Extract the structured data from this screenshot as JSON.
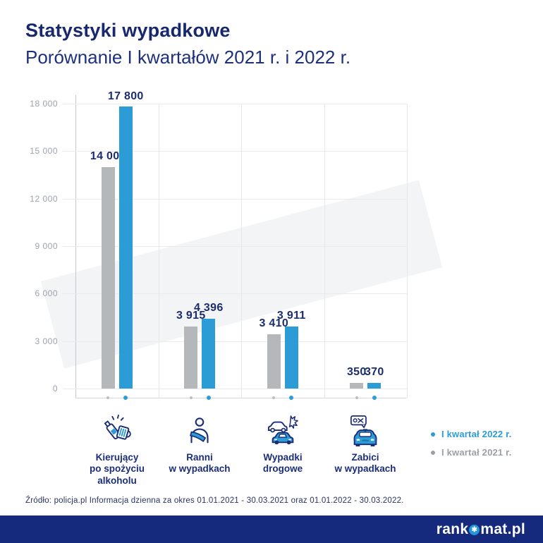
{
  "title": "Statystyki wypadkowe",
  "subtitle": "Porównanie I kwartałów 2021 r. i 2022 r.",
  "chart_data": {
    "type": "bar",
    "title": "Statystyki wypadkowe — Porównanie I kwartałów 2021 r. i 2022 r.",
    "categories": [
      {
        "label": "Kierujący\npo spożyciu\nalkoholu",
        "icon": "alcohol-icon"
      },
      {
        "label": "Ranni\nw wypadkach",
        "icon": "injured-person-icon"
      },
      {
        "label": "Wypadki\ndrogowe",
        "icon": "car-crash-icon"
      },
      {
        "label": "Zabici\nw wypadkach",
        "icon": "fatalities-car-icon"
      }
    ],
    "series": [
      {
        "name": "I kwartał 2021 r.",
        "color": "#b5b8bb",
        "values": [
          14009,
          3915,
          3410,
          350
        ]
      },
      {
        "name": "I kwartał 2022 r.",
        "color": "#2b9cd6",
        "values": [
          17800,
          4396,
          3911,
          370
        ]
      }
    ],
    "ylim": [
      0,
      18000
    ],
    "yticks": [
      0,
      3000,
      6000,
      9000,
      12000,
      15000,
      18000
    ],
    "grid": true,
    "legend_position": "right-of-category-labels"
  },
  "legend": [
    {
      "label": "I kwartał 2022 r.",
      "color": "#2b9cd6"
    },
    {
      "label": "I kwartał 2021 r.",
      "color": "#9aa0a6"
    }
  ],
  "source": "Źródło: policja.pl Informacja dzienna za okres 01.01.2021 - 30.03.2021 oraz 01.01.2022 - 30.03.2022.",
  "footer": {
    "logo_prefix": "rank",
    "logo_star_icon": "star-icon",
    "logo_star_glyph": "✱",
    "logo_suffix": "mat.pl"
  },
  "colors": {
    "navy_text": "#1b2d78",
    "accent_blue": "#2b9cd6",
    "bar_gray": "#b5b8bb",
    "footer_navy": "#15297d"
  }
}
